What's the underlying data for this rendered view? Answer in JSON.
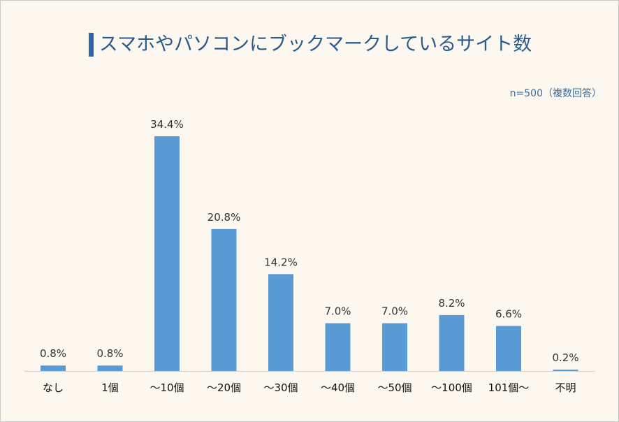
{
  "chart_data": {
    "type": "bar",
    "title": "スマホやパソコンにブックマークしているサイト数",
    "note": "n=500（複数回答）",
    "categories": [
      "なし",
      "1個",
      "～10個",
      "～20個",
      "～30個",
      "～40個",
      "～50個",
      "～100個",
      "101個～",
      "不明"
    ],
    "values": [
      0.8,
      0.8,
      34.4,
      20.8,
      14.2,
      7.0,
      7.0,
      8.2,
      6.6,
      0.2
    ],
    "value_labels": [
      "0.8%",
      "0.8%",
      "34.4%",
      "20.8%",
      "14.2%",
      "7.0%",
      "7.0%",
      "8.2%",
      "6.6%",
      "0.2%"
    ],
    "unit": "%",
    "ylim": [
      0,
      35
    ],
    "grid": false,
    "legend": "none",
    "colors": {
      "bar": "#5b9bd5",
      "title": "#2a5a8c",
      "background": "#fcf8ef"
    }
  }
}
